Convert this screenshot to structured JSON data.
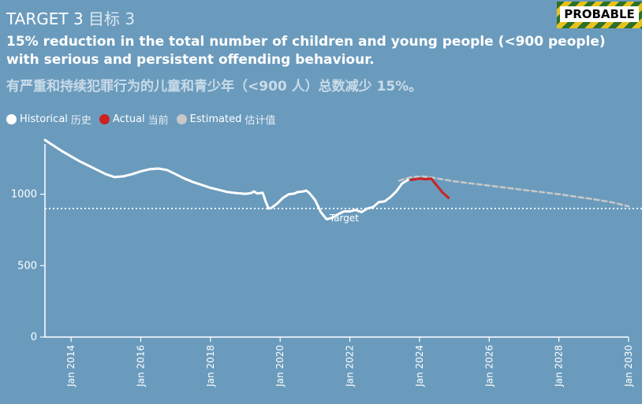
{
  "header": {
    "title_en": "TARGET 3",
    "title_cn": "目标 3",
    "badge": "PROBABLE"
  },
  "subtitle": {
    "en": "15% reduction in the total number of children and young people (<900 people) with serious and persistent offending behaviour.",
    "cn": "有严重和持续犯罪行为的儿童和青少年（<900 人）总数减少 15%。"
  },
  "legend": [
    {
      "label": "Historical",
      "label_cn": "历史",
      "color": "#ffffff"
    },
    {
      "label": "Actual",
      "label_cn": "当前",
      "color": "#cc2222"
    },
    {
      "label": "Estimated",
      "label_cn": "估计值",
      "color": "#c8c8c8"
    }
  ],
  "chart_data": {
    "type": "line",
    "xlabel": "",
    "ylabel": "",
    "ylim": [
      0,
      1450
    ],
    "xlim": [
      "2013-04",
      "2030-01"
    ],
    "yticks": [
      0,
      500,
      1000
    ],
    "xticks": [
      "Jan 2014",
      "Jan 2016",
      "Jan 2018",
      "Jan 2020",
      "Jan 2022",
      "Jan 2024",
      "Jan 2026",
      "Jan 2028",
      "Jan 2030"
    ],
    "target": {
      "value": 900,
      "label": "Target"
    },
    "series": [
      {
        "name": "Historical",
        "color": "#ffffff",
        "points": [
          [
            "2013-04",
            1380
          ],
          [
            "2013-07",
            1340
          ],
          [
            "2013-10",
            1300
          ],
          [
            "2014-01",
            1265
          ],
          [
            "2014-04",
            1230
          ],
          [
            "2014-07",
            1200
          ],
          [
            "2014-10",
            1170
          ],
          [
            "2015-01",
            1140
          ],
          [
            "2015-04",
            1120
          ],
          [
            "2015-07",
            1125
          ],
          [
            "2015-10",
            1140
          ],
          [
            "2016-01",
            1160
          ],
          [
            "2016-04",
            1175
          ],
          [
            "2016-07",
            1180
          ],
          [
            "2016-10",
            1170
          ],
          [
            "2017-01",
            1140
          ],
          [
            "2017-04",
            1110
          ],
          [
            "2017-07",
            1085
          ],
          [
            "2017-10",
            1065
          ],
          [
            "2018-01",
            1045
          ],
          [
            "2018-04",
            1030
          ],
          [
            "2018-07",
            1015
          ],
          [
            "2018-10",
            1008
          ],
          [
            "2019-01",
            1003
          ],
          [
            "2019-03",
            1008
          ],
          [
            "2019-04",
            1020
          ],
          [
            "2019-05",
            1005
          ],
          [
            "2019-07",
            1010
          ],
          [
            "2019-08",
            950
          ],
          [
            "2019-09",
            900
          ],
          [
            "2019-10",
            905
          ],
          [
            "2019-12",
            935
          ],
          [
            "2020-02",
            975
          ],
          [
            "2020-04",
            1000
          ],
          [
            "2020-06",
            1005
          ],
          [
            "2020-07",
            1015
          ],
          [
            "2020-09",
            1020
          ],
          [
            "2020-10",
            1025
          ],
          [
            "2020-11",
            1010
          ],
          [
            "2021-01",
            960
          ],
          [
            "2021-03",
            875
          ],
          [
            "2021-05",
            825
          ],
          [
            "2021-07",
            835
          ],
          [
            "2021-09",
            860
          ],
          [
            "2021-11",
            880
          ],
          [
            "2022-01",
            880
          ],
          [
            "2022-03",
            890
          ],
          [
            "2022-05",
            875
          ],
          [
            "2022-07",
            900
          ],
          [
            "2022-09",
            910
          ],
          [
            "2022-11",
            945
          ],
          [
            "2023-01",
            950
          ],
          [
            "2023-03",
            980
          ],
          [
            "2023-05",
            1020
          ],
          [
            "2023-07",
            1075
          ],
          [
            "2023-09",
            1100
          ]
        ]
      },
      {
        "name": "Actual",
        "color": "#cc2222",
        "points": [
          [
            "2023-10",
            1100
          ],
          [
            "2024-01",
            1110
          ],
          [
            "2024-03",
            1105
          ],
          [
            "2024-05",
            1110
          ],
          [
            "2024-07",
            1060
          ],
          [
            "2024-09",
            1010
          ],
          [
            "2024-11",
            975
          ]
        ]
      },
      {
        "name": "Estimated",
        "color": "#c8c8c8",
        "points": [
          [
            "2023-06",
            1095
          ],
          [
            "2023-10",
            1120
          ],
          [
            "2024-02",
            1125
          ],
          [
            "2024-06",
            1115
          ],
          [
            "2025-01",
            1090
          ],
          [
            "2026-01",
            1060
          ],
          [
            "2027-01",
            1030
          ],
          [
            "2028-01",
            1000
          ],
          [
            "2029-01",
            965
          ],
          [
            "2029-07",
            945
          ],
          [
            "2030-01",
            915
          ]
        ]
      }
    ]
  }
}
